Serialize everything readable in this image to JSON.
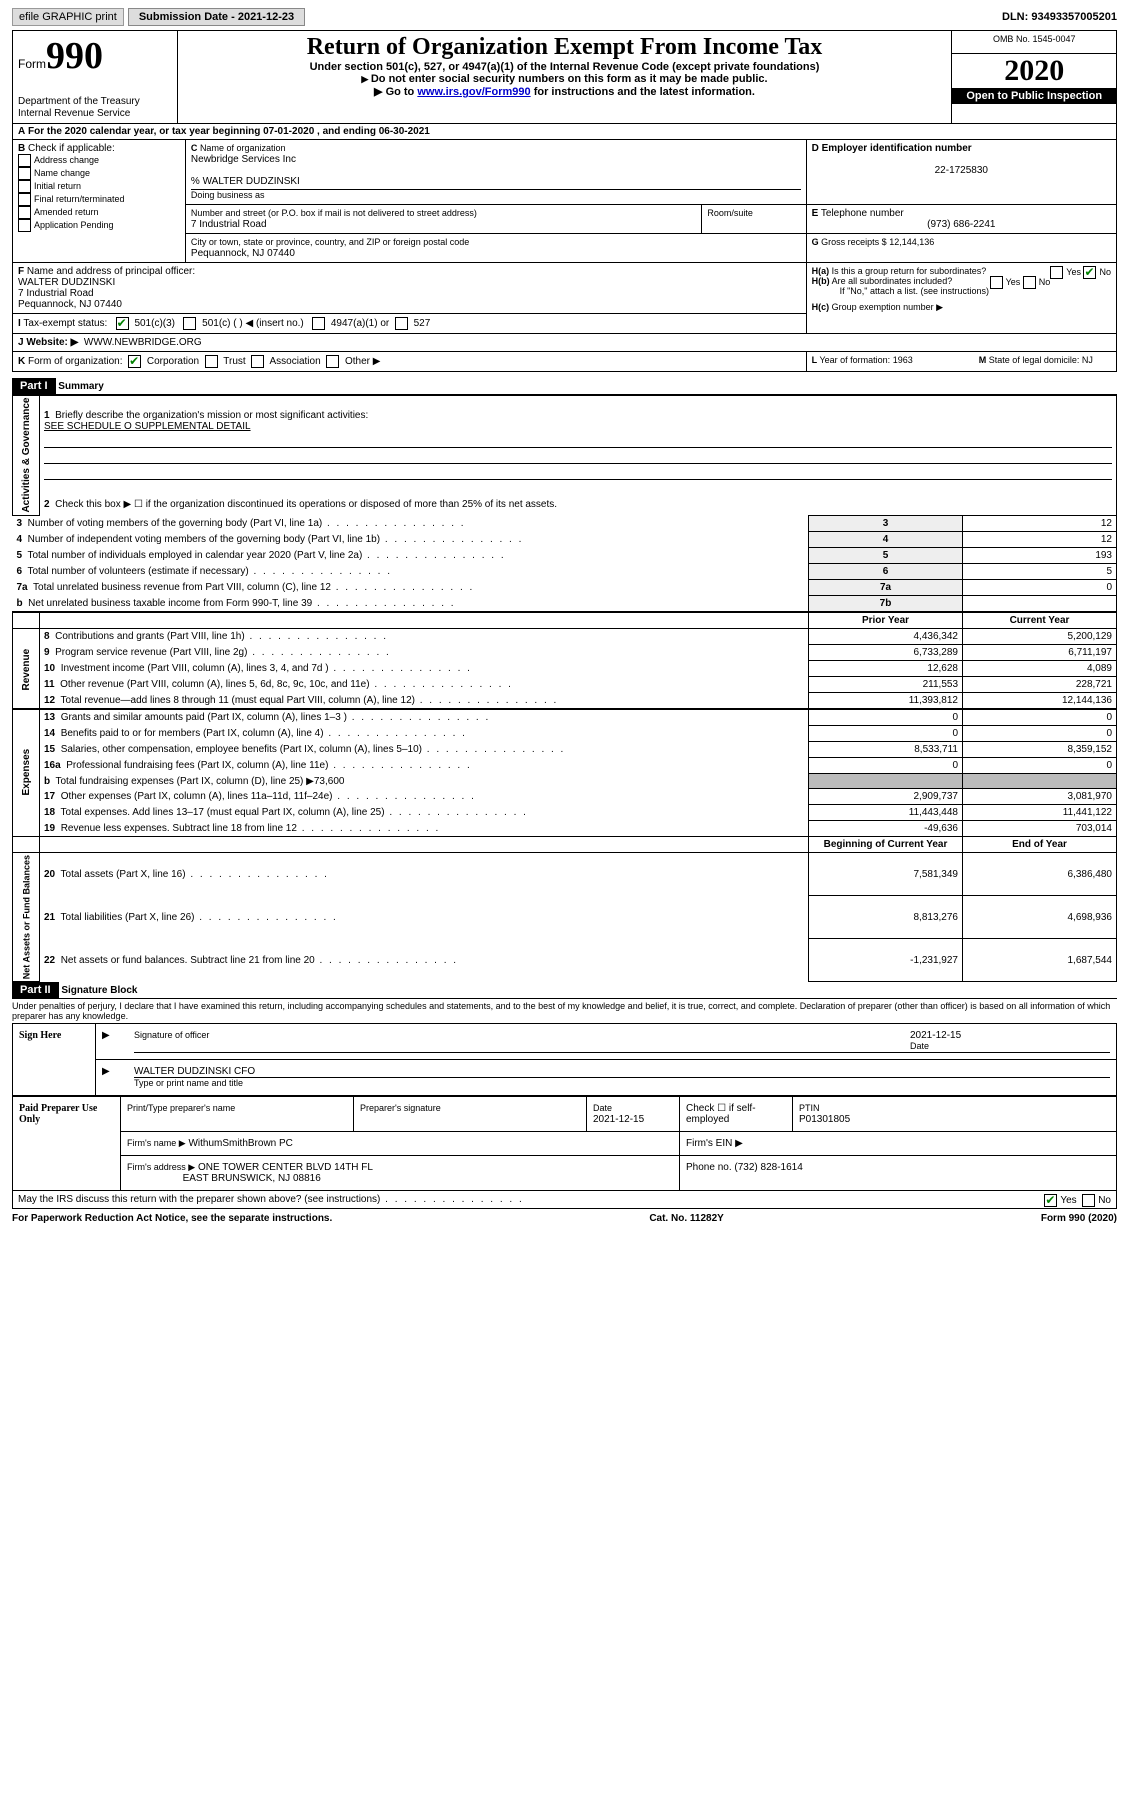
{
  "topbar": {
    "efile": "efile GRAPHIC print",
    "subLabel": "Submission Date - 2021-12-23",
    "dln": "DLN: 93493357005201"
  },
  "header": {
    "formWord": "Form",
    "formNum": "990",
    "dept": "Department of the Treasury\nInternal Revenue Service",
    "title": "Return of Organization Exempt From Income Tax",
    "sub1": "Under section 501(c), 527, or 4947(a)(1) of the Internal Revenue Code (except private foundations)",
    "sub2": "Do not enter social security numbers on this form as it may be made public.",
    "sub3pre": "Go to ",
    "sub3link": "www.irs.gov/Form990",
    "sub3post": " for instructions and the latest information.",
    "omb": "OMB No. 1545-0047",
    "year": "2020",
    "openPublic": "Open to Public Inspection"
  },
  "A": {
    "text": "For the 2020 calendar year, or tax year beginning 07-01-2020    , and ending 06-30-2021"
  },
  "B": {
    "label": "Check if applicable:",
    "opts": [
      "Address change",
      "Name change",
      "Initial return",
      "Final return/terminated",
      "Amended return",
      "Application Pending"
    ]
  },
  "C": {
    "label": "Name of organization",
    "org": "Newbridge Services Inc",
    "careOf": "% WALTER DUDZINSKI",
    "dba": "Doing business as",
    "streetLabel": "Number and street (or P.O. box if mail is not delivered to street address)",
    "suite": "Room/suite",
    "street": "7 Industrial Road",
    "cityLabel": "City or town, state or province, country, and ZIP or foreign postal code",
    "city": "Pequannock, NJ  07440"
  },
  "D": {
    "label": "Employer identification number",
    "val": "22-1725830"
  },
  "E": {
    "label": "Telephone number",
    "val": "(973) 686-2241"
  },
  "G": {
    "label": "Gross receipts $",
    "val": "12,144,136"
  },
  "F": {
    "label": "Name and address of principal officer:",
    "name": "WALTER DUDZINSKI",
    "addr1": "7 Industrial Road",
    "addr2": "Pequannock, NJ  07440"
  },
  "H": {
    "a": "Is this a group return for subordinates?",
    "b": "Are all subordinates included?",
    "bno": "If \"No,\" attach a list. (see instructions)",
    "c": "Group exemption number ▶"
  },
  "I": {
    "label": "Tax-exempt status:",
    "opt1": "501(c)(3)",
    "opt2": "501(c) (  ) ◀ (insert no.)",
    "opt3": "4947(a)(1) or",
    "opt4": "527"
  },
  "J": {
    "label": "Website: ▶",
    "val": "WWW.NEWBRIDGE.ORG"
  },
  "K": {
    "label": "Form of organization:",
    "opts": [
      "Corporation",
      "Trust",
      "Association",
      "Other ▶"
    ]
  },
  "L": {
    "label": "Year of formation:",
    "val": "1963"
  },
  "M": {
    "label": "State of legal domicile:",
    "val": "NJ"
  },
  "part1": {
    "label": "Part I",
    "title": "Summary"
  },
  "summary": {
    "sideA": "Activities & Governance",
    "sideR": "Revenue",
    "sideE": "Expenses",
    "sideN": "Net Assets or Fund Balances",
    "l1": "Briefly describe the organization's mission or most significant activities:",
    "l1v": "SEE SCHEDULE O SUPPLEMENTAL DETAIL",
    "l2": "Check this box ▶ ☐  if the organization discontinued its operations or disposed of more than 25% of its net assets.",
    "rows": [
      {
        "n": "3",
        "t": "Number of voting members of the governing body (Part VI, line 1a)",
        "c": "3",
        "v": "12"
      },
      {
        "n": "4",
        "t": "Number of independent voting members of the governing body (Part VI, line 1b)",
        "c": "4",
        "v": "12"
      },
      {
        "n": "5",
        "t": "Total number of individuals employed in calendar year 2020 (Part V, line 2a)",
        "c": "5",
        "v": "193"
      },
      {
        "n": "6",
        "t": "Total number of volunteers (estimate if necessary)",
        "c": "6",
        "v": "5"
      },
      {
        "n": "7a",
        "t": "Total unrelated business revenue from Part VIII, column (C), line 12",
        "c": "7a",
        "v": "0"
      },
      {
        "n": "b",
        "t": "Net unrelated business taxable income from Form 990-T, line 39",
        "c": "7b",
        "v": ""
      }
    ],
    "hdrPrior": "Prior Year",
    "hdrCurr": "Current Year",
    "rev": [
      {
        "n": "8",
        "t": "Contributions and grants (Part VIII, line 1h)",
        "p": "4,436,342",
        "c": "5,200,129"
      },
      {
        "n": "9",
        "t": "Program service revenue (Part VIII, line 2g)",
        "p": "6,733,289",
        "c": "6,711,197"
      },
      {
        "n": "10",
        "t": "Investment income (Part VIII, column (A), lines 3, 4, and 7d )",
        "p": "12,628",
        "c": "4,089"
      },
      {
        "n": "11",
        "t": "Other revenue (Part VIII, column (A), lines 5, 6d, 8c, 9c, 10c, and 11e)",
        "p": "211,553",
        "c": "228,721"
      },
      {
        "n": "12",
        "t": "Total revenue—add lines 8 through 11 (must equal Part VIII, column (A), line 12)",
        "p": "11,393,812",
        "c": "12,144,136"
      }
    ],
    "exp": [
      {
        "n": "13",
        "t": "Grants and similar amounts paid (Part IX, column (A), lines 1–3 )",
        "p": "0",
        "c": "0"
      },
      {
        "n": "14",
        "t": "Benefits paid to or for members (Part IX, column (A), line 4)",
        "p": "0",
        "c": "0"
      },
      {
        "n": "15",
        "t": "Salaries, other compensation, employee benefits (Part IX, column (A), lines 5–10)",
        "p": "8,533,711",
        "c": "8,359,152"
      },
      {
        "n": "16a",
        "t": "Professional fundraising fees (Part IX, column (A), line 11e)",
        "p": "0",
        "c": "0"
      },
      {
        "n": "b",
        "t": "Total fundraising expenses (Part IX, column (D), line 25) ▶73,600",
        "p": "",
        "c": "",
        "grey": true
      },
      {
        "n": "17",
        "t": "Other expenses (Part IX, column (A), lines 11a–11d, 11f–24e)",
        "p": "2,909,737",
        "c": "3,081,970"
      },
      {
        "n": "18",
        "t": "Total expenses. Add lines 13–17 (must equal Part IX, column (A), line 25)",
        "p": "11,443,448",
        "c": "11,441,122"
      },
      {
        "n": "19",
        "t": "Revenue less expenses. Subtract line 18 from line 12",
        "p": "-49,636",
        "c": "703,014"
      }
    ],
    "hdrBeg": "Beginning of Current Year",
    "hdrEnd": "End of Year",
    "net": [
      {
        "n": "20",
        "t": "Total assets (Part X, line 16)",
        "p": "7,581,349",
        "c": "6,386,480"
      },
      {
        "n": "21",
        "t": "Total liabilities (Part X, line 26)",
        "p": "8,813,276",
        "c": "4,698,936"
      },
      {
        "n": "22",
        "t": "Net assets or fund balances. Subtract line 21 from line 20",
        "p": "-1,231,927",
        "c": "1,687,544"
      }
    ]
  },
  "part2": {
    "label": "Part II",
    "title": "Signature Block",
    "decl": "Under penalties of perjury, I declare that I have examined this return, including accompanying schedules and statements, and to the best of my knowledge and belief, it is true, correct, and complete. Declaration of preparer (other than officer) is based on all information of which preparer has any knowledge."
  },
  "sign": {
    "side": "Sign Here",
    "sigLabel": "Signature of officer",
    "dateLabel": "Date",
    "date": "2021-12-15",
    "nameTitle": "WALTER DUDZINSKI CFO",
    "typeLabel": "Type or print name and title"
  },
  "paid": {
    "side": "Paid Preparer Use Only",
    "h1": "Print/Type preparer's name",
    "h2": "Preparer's signature",
    "h3": "Date",
    "h3v": "2021-12-15",
    "h4": "Check ☐ if self-employed",
    "h5": "PTIN",
    "h5v": "P01301805",
    "firmLabel": "Firm's name   ▶",
    "firm": "WithumSmithBrown PC",
    "einLabel": "Firm's EIN ▶",
    "addrLabel": "Firm's address ▶",
    "addr1": "ONE TOWER CENTER BLVD 14TH FL",
    "addr2": "EAST BRUNSWICK, NJ  08816",
    "phoneLabel": "Phone no.",
    "phone": "(732) 828-1614",
    "discuss": "May the IRS discuss this return with the preparer shown above? (see instructions)"
  },
  "footer": {
    "l": "For Paperwork Reduction Act Notice, see the separate instructions.",
    "c": "Cat. No. 11282Y",
    "r": "Form 990 (2020)"
  }
}
